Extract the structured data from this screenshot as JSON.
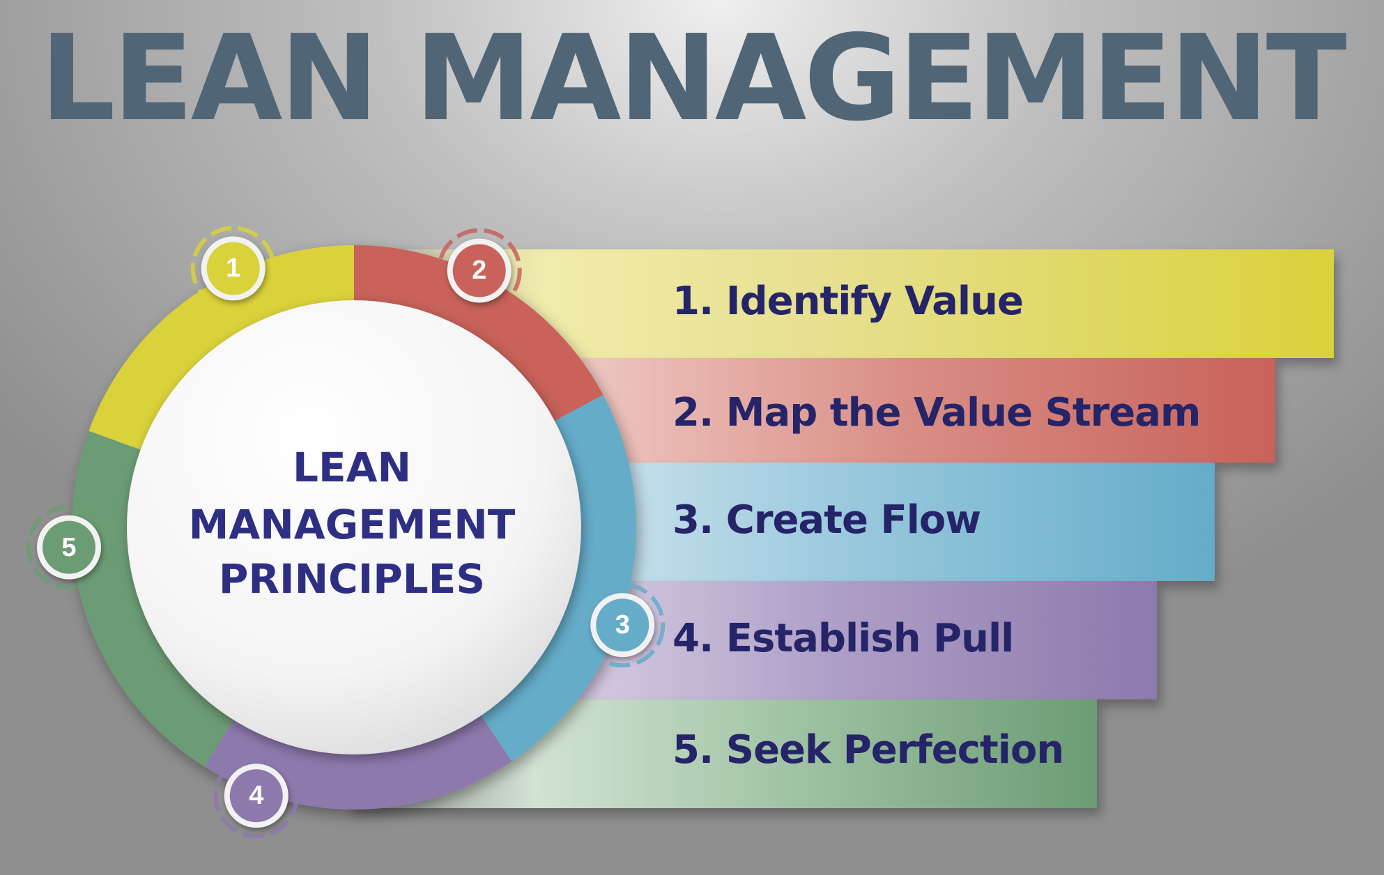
{
  "title": "LEAN MANAGEMENT",
  "center": {
    "line1": "LEAN",
    "line2": "MANAGEMENT",
    "line3": "PRINCIPLES"
  },
  "principles": [
    {
      "number": "1",
      "label": "1. Identify Value",
      "color": "#d9d23a"
    },
    {
      "number": "2",
      "label": "2. Map the Value Stream",
      "color": "#c8625a"
    },
    {
      "number": "3",
      "label": "3. Create Flow",
      "color": "#65acc9"
    },
    {
      "number": "4",
      "label": "4. Establish Pull",
      "color": "#8e79ad"
    },
    {
      "number": "5",
      "label": "5. Seek Perfection",
      "color": "#6c9c74"
    }
  ]
}
